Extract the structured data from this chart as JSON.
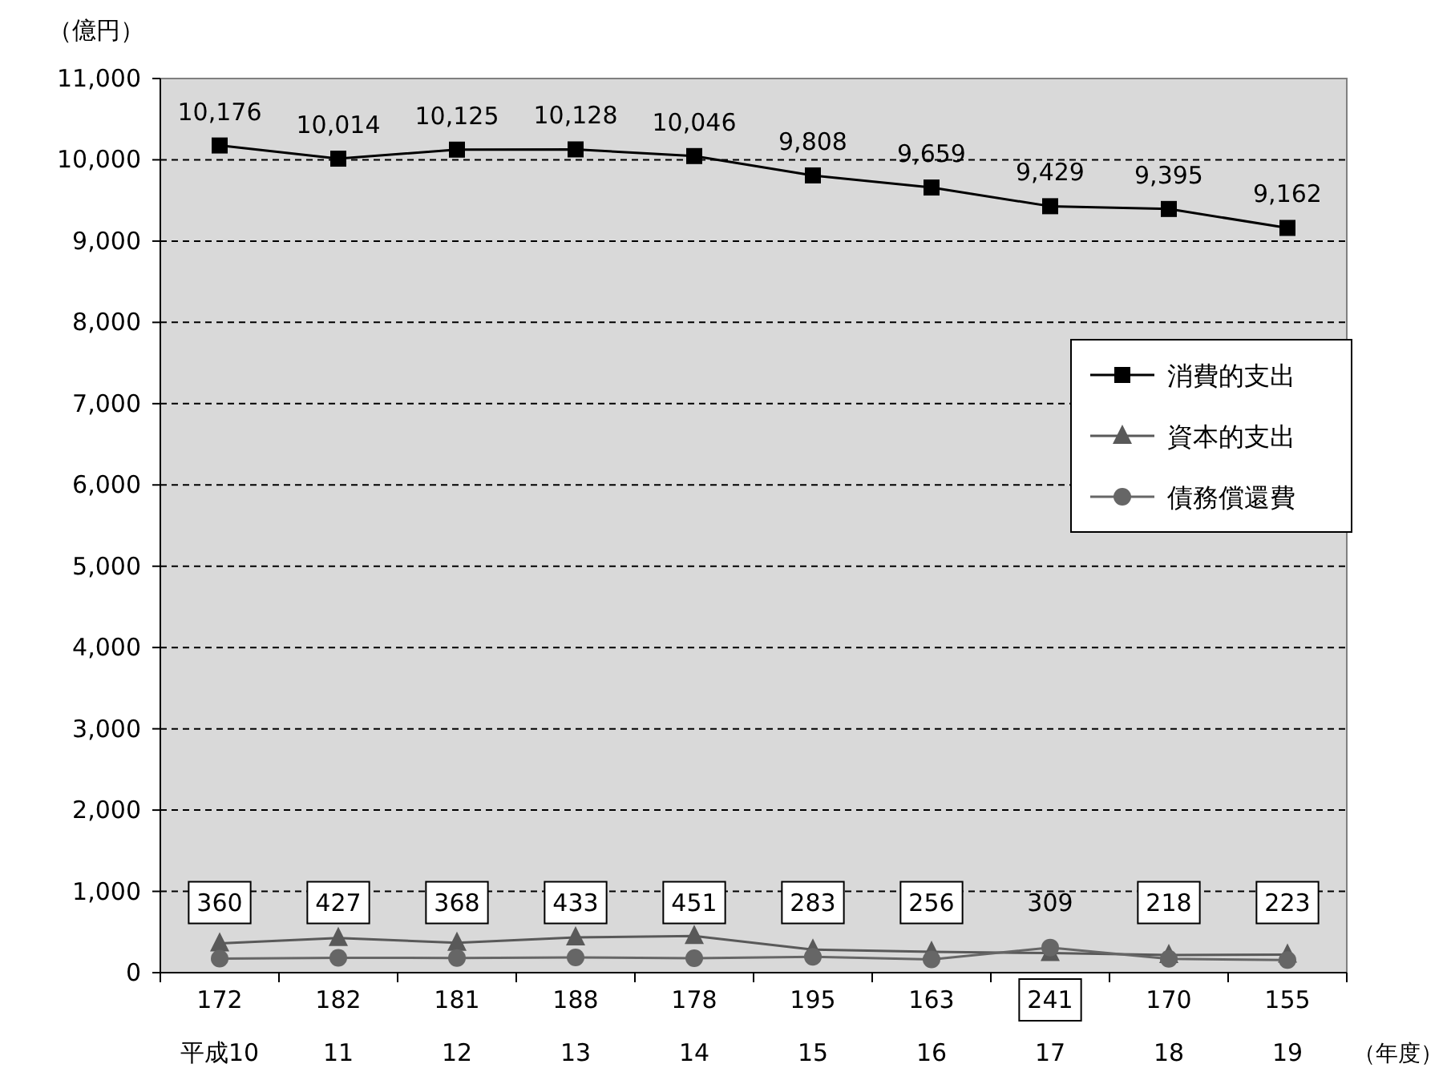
{
  "chart_data": {
    "type": "line",
    "ylabel": "（億円）",
    "xlabel": "（年度）",
    "categories": [
      "平成10",
      "11",
      "12",
      "13",
      "14",
      "15",
      "16",
      "17",
      "18",
      "19"
    ],
    "ylim": [
      0,
      11000
    ],
    "yticks": [
      {
        "value": 0,
        "label": "0"
      },
      {
        "value": 1000,
        "label": "1,000"
      },
      {
        "value": 2000,
        "label": "2,000"
      },
      {
        "value": 3000,
        "label": "3,000"
      },
      {
        "value": 4000,
        "label": "4,000"
      },
      {
        "value": 5000,
        "label": "5,000"
      },
      {
        "value": 6000,
        "label": "6,000"
      },
      {
        "value": 7000,
        "label": "7,000"
      },
      {
        "value": 8000,
        "label": "8,000"
      },
      {
        "value": 9000,
        "label": "9,000"
      },
      {
        "value": 10000,
        "label": "10,000"
      },
      {
        "value": 11000,
        "label": "11,000"
      }
    ],
    "grid": "y",
    "legend": "right",
    "series": [
      {
        "name": "消費的支出",
        "color": "#000000",
        "marker": "square",
        "values": [
          10176,
          10014,
          10125,
          10128,
          10046,
          9808,
          9659,
          9429,
          9395,
          9162
        ],
        "value_labels": [
          "10,176",
          "10,014",
          "10,125",
          "10,128",
          "10,046",
          "9,808",
          "9,659",
          "9,429",
          "9,395",
          "9,162"
        ]
      },
      {
        "name": "資本的支出",
        "color": "#595959",
        "marker": "triangle",
        "values": [
          360,
          427,
          368,
          433,
          451,
          283,
          256,
          241,
          218,
          223
        ],
        "value_labels": [
          "360",
          "427",
          "368",
          "433",
          "451",
          "283",
          "256",
          "241",
          "218",
          "223"
        ]
      },
      {
        "name": "債務償還費",
        "color": "#666666",
        "marker": "circle",
        "values": [
          172,
          182,
          181,
          188,
          178,
          195,
          163,
          309,
          170,
          155
        ],
        "value_labels": [
          "172",
          "182",
          "181",
          "188",
          "178",
          "195",
          "163",
          "309",
          "170",
          "155"
        ]
      }
    ]
  }
}
